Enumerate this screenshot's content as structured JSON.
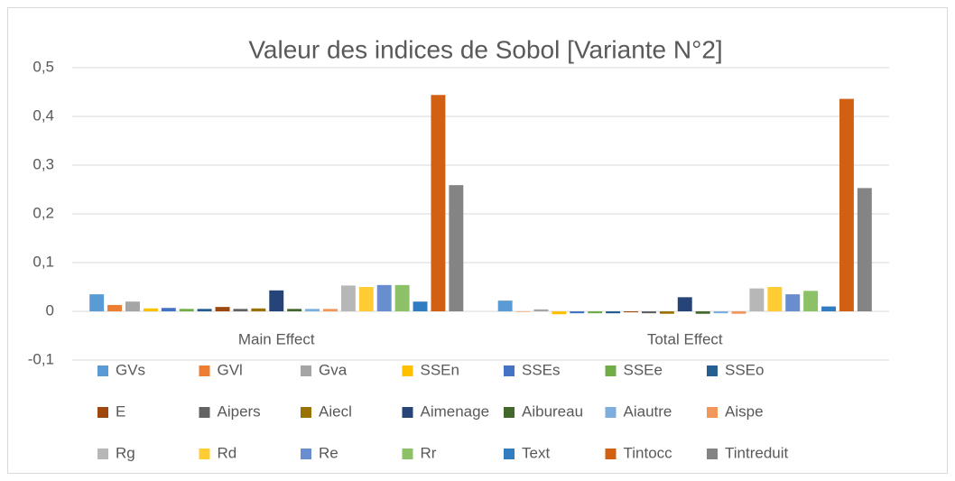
{
  "chart_data": {
    "type": "bar",
    "title": "Valeur des indices de Sobol [Variante N°2]",
    "categories": [
      "Main Effect",
      "Total Effect"
    ],
    "series": [
      {
        "name": "GVs",
        "color": "#5B9BD5",
        "values": [
          0.035,
          0.022
        ]
      },
      {
        "name": "GVl",
        "color": "#ED7D31",
        "values": [
          0.013,
          0
        ]
      },
      {
        "name": "Gva",
        "color": "#A5A5A5",
        "values": [
          0.02,
          0.004
        ]
      },
      {
        "name": "SSEn",
        "color": "#FFC000",
        "values": [
          0.006,
          -0.006
        ]
      },
      {
        "name": "SSEs",
        "color": "#4472C4",
        "values": [
          0.007,
          -0.004
        ]
      },
      {
        "name": "SSEe",
        "color": "#70AD47",
        "values": [
          0.005,
          -0.004
        ]
      },
      {
        "name": "SSEo",
        "color": "#255E91",
        "values": [
          0.005,
          -0.004
        ]
      },
      {
        "name": "E",
        "color": "#9E480E",
        "values": [
          0.009,
          -0.002
        ]
      },
      {
        "name": "Aipers",
        "color": "#636363",
        "values": [
          0.005,
          -0.004
        ]
      },
      {
        "name": "Aiecl",
        "color": "#997300",
        "values": [
          0.006,
          -0.005
        ]
      },
      {
        "name": "Aimenage",
        "color": "#264478",
        "values": [
          0.043,
          0.029
        ]
      },
      {
        "name": "Aibureau",
        "color": "#43682B",
        "values": [
          0.005,
          -0.005
        ]
      },
      {
        "name": "Aiautre",
        "color": "#7CAFDD",
        "values": [
          0.005,
          -0.004
        ]
      },
      {
        "name": "Aispe",
        "color": "#F1975A",
        "values": [
          0.005,
          -0.005
        ]
      },
      {
        "name": "Rg",
        "color": "#B7B7B7",
        "values": [
          0.053,
          0.047
        ]
      },
      {
        "name": "Rd",
        "color": "#FFCD33",
        "values": [
          0.05,
          0.05
        ]
      },
      {
        "name": "Re",
        "color": "#698ED0",
        "values": [
          0.054,
          0.035
        ]
      },
      {
        "name": "Rr",
        "color": "#8CC168",
        "values": [
          0.054,
          0.042
        ]
      },
      {
        "name": "Text",
        "color": "#327DC2",
        "values": [
          0.02,
          0.01
        ]
      },
      {
        "name": "Tintocc",
        "color": "#D26012",
        "values": [
          0.444,
          0.436
        ]
      },
      {
        "name": "Tintreduit",
        "color": "#848484",
        "values": [
          0.259,
          0.253
        ]
      }
    ],
    "ylim": [
      -0.1,
      0.5
    ],
    "yticks": [
      {
        "value": -0.1,
        "label": "-0,1"
      },
      0,
      {
        "value": 0.1,
        "label": "0,1"
      },
      {
        "value": 0.2,
        "label": "0,2"
      },
      {
        "value": 0.3,
        "label": "0,3"
      },
      {
        "value": 0.4,
        "label": "0,4"
      },
      {
        "value": 0.5,
        "label": "0,5"
      }
    ],
    "grid": true,
    "legend": "bottom"
  }
}
